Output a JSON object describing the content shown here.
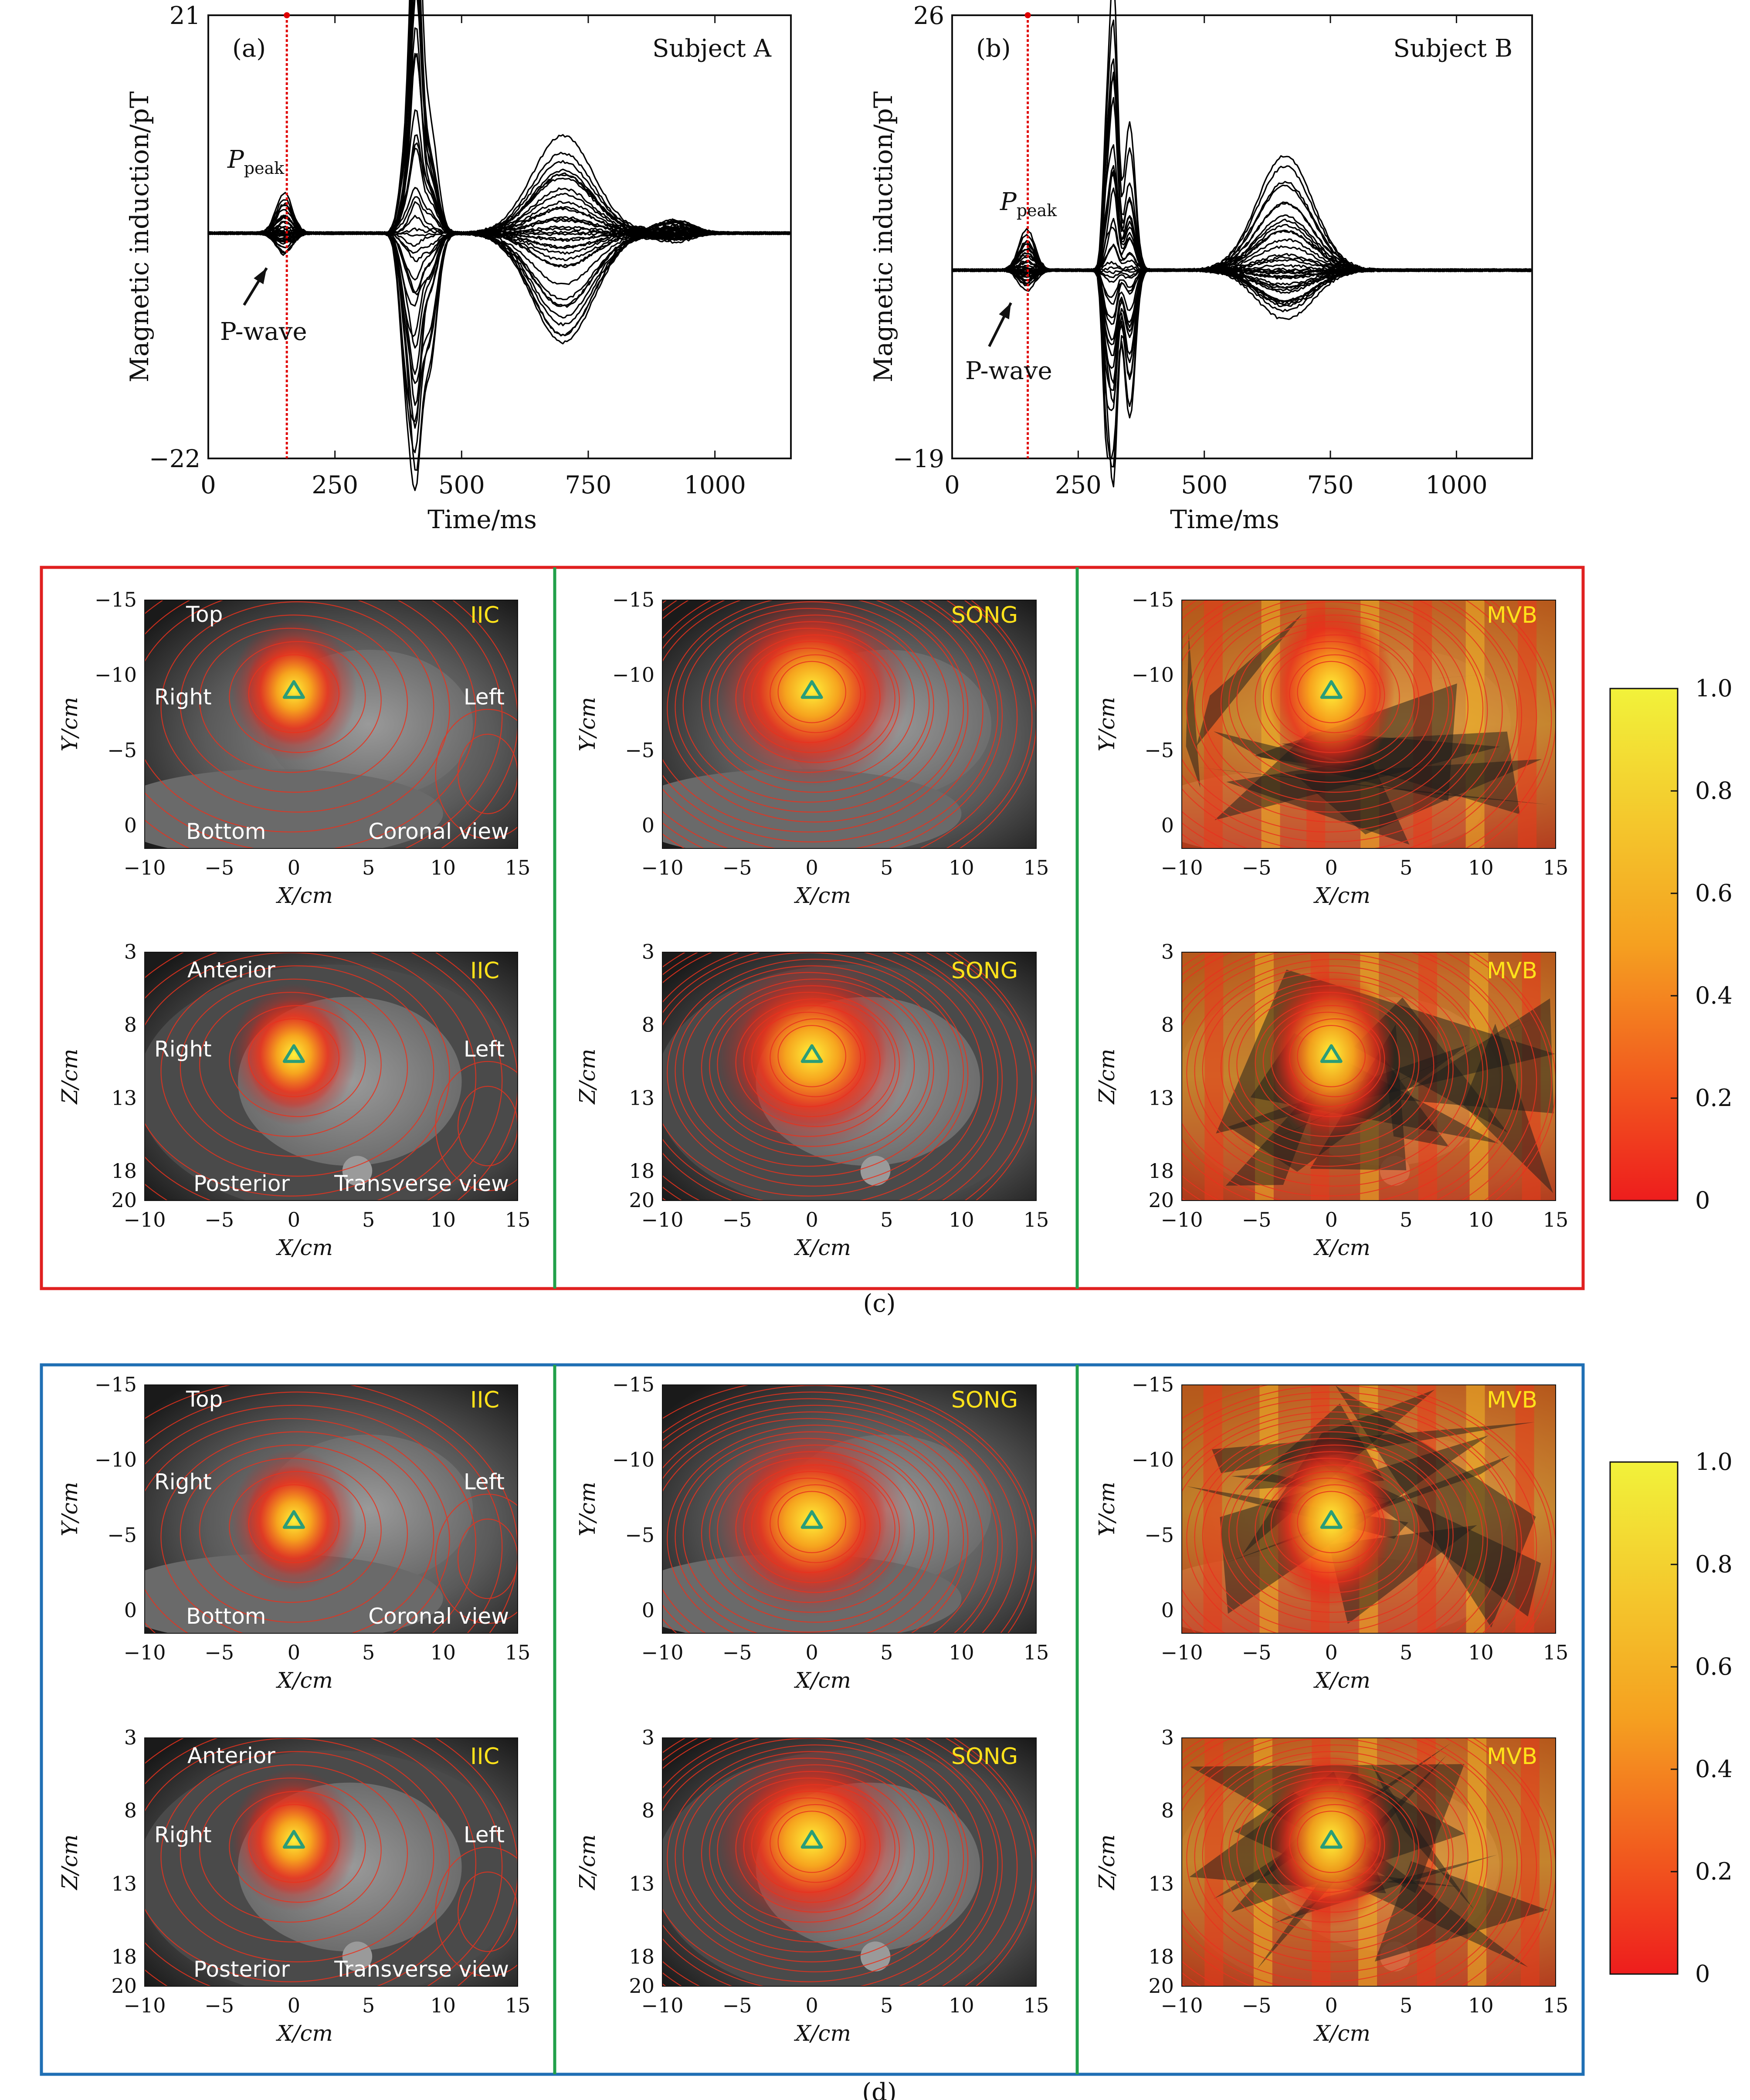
{
  "waveforms": [
    {
      "panel": "(a)",
      "subject": "Subject A",
      "ylabel": "Magnetic induction/pT",
      "xlabel": "Time/ms",
      "y_top": "21",
      "y_bottom": "−22",
      "x_ticks": [
        "0",
        "250",
        "500",
        "750",
        "1000"
      ],
      "ppeak_main": "P",
      "ppeak_sub": "peak",
      "pwave": "P-wave",
      "marker_ms": 155
    },
    {
      "panel": "(b)",
      "subject": "Subject B",
      "ylabel": "Magnetic induction/pT",
      "xlabel": "Time/ms",
      "y_top": "26",
      "y_bottom": "−19",
      "x_ticks": [
        "0",
        "250",
        "500",
        "750",
        "1000"
      ],
      "ppeak_main": "P",
      "ppeak_sub": "peak",
      "pwave": "P-wave",
      "marker_ms": 150
    }
  ],
  "groups": [
    {
      "caption": "(c)",
      "border_color": "#e02020",
      "methods": [
        "IIC",
        "SONG",
        "MVB"
      ],
      "coronal": {
        "ylabel": "Y/cm",
        "xlabel": "X/cm",
        "y_ticks": [
          "−15",
          "−10",
          "−5",
          "0"
        ],
        "x_ticks": [
          "−10",
          "−5",
          "0",
          "5",
          "10",
          "15"
        ],
        "labels": {
          "top": "Top",
          "right": "Right",
          "left": "Left",
          "bottom": "Bottom",
          "view": "Coronal view"
        }
      },
      "transverse": {
        "ylabel": "Z/cm",
        "xlabel": "X/cm",
        "y_ticks": [
          "3",
          "8",
          "13",
          "18",
          "20"
        ],
        "x_ticks": [
          "−10",
          "−5",
          "0",
          "5",
          "10",
          "15"
        ],
        "labels": {
          "top": "Anterior",
          "right": "Right",
          "left": "Left",
          "bottom": "Posterior",
          "view": "Transverse view"
        }
      }
    },
    {
      "caption": "(d)",
      "border_color": "#1f6fb4",
      "methods": [
        "IIC",
        "SONG",
        "MVB"
      ],
      "coronal": {
        "ylabel": "Y/cm",
        "xlabel": "X/cm",
        "y_ticks": [
          "−15",
          "−10",
          "−5",
          "0"
        ],
        "x_ticks": [
          "−10",
          "−5",
          "0",
          "5",
          "10",
          "15"
        ],
        "labels": {
          "top": "Top",
          "right": "Right",
          "left": "Left",
          "bottom": "Bottom",
          "view": "Coronal view"
        }
      },
      "transverse": {
        "ylabel": "Z/cm",
        "xlabel": "X/cm",
        "y_ticks": [
          "3",
          "8",
          "13",
          "18",
          "20"
        ],
        "x_ticks": [
          "−10",
          "−5",
          "0",
          "5",
          "10",
          "15"
        ],
        "labels": {
          "top": "Anterior",
          "right": "Right",
          "left": "Left",
          "bottom": "Posterior",
          "view": "Transverse view"
        }
      }
    }
  ],
  "colorbar": {
    "ticks": [
      "1.0",
      "0.8",
      "0.6",
      "0.4",
      "0.2",
      "0"
    ],
    "colors": {
      "high": "#f2f23a",
      "mid": "#f5a020",
      "low": "#ee1d1d"
    }
  },
  "colors": {
    "trace": "#000000",
    "marker": "#e00000",
    "triangle": "#2a9d78",
    "method_label": "#ffe21a",
    "divider": "#22a04a"
  }
}
